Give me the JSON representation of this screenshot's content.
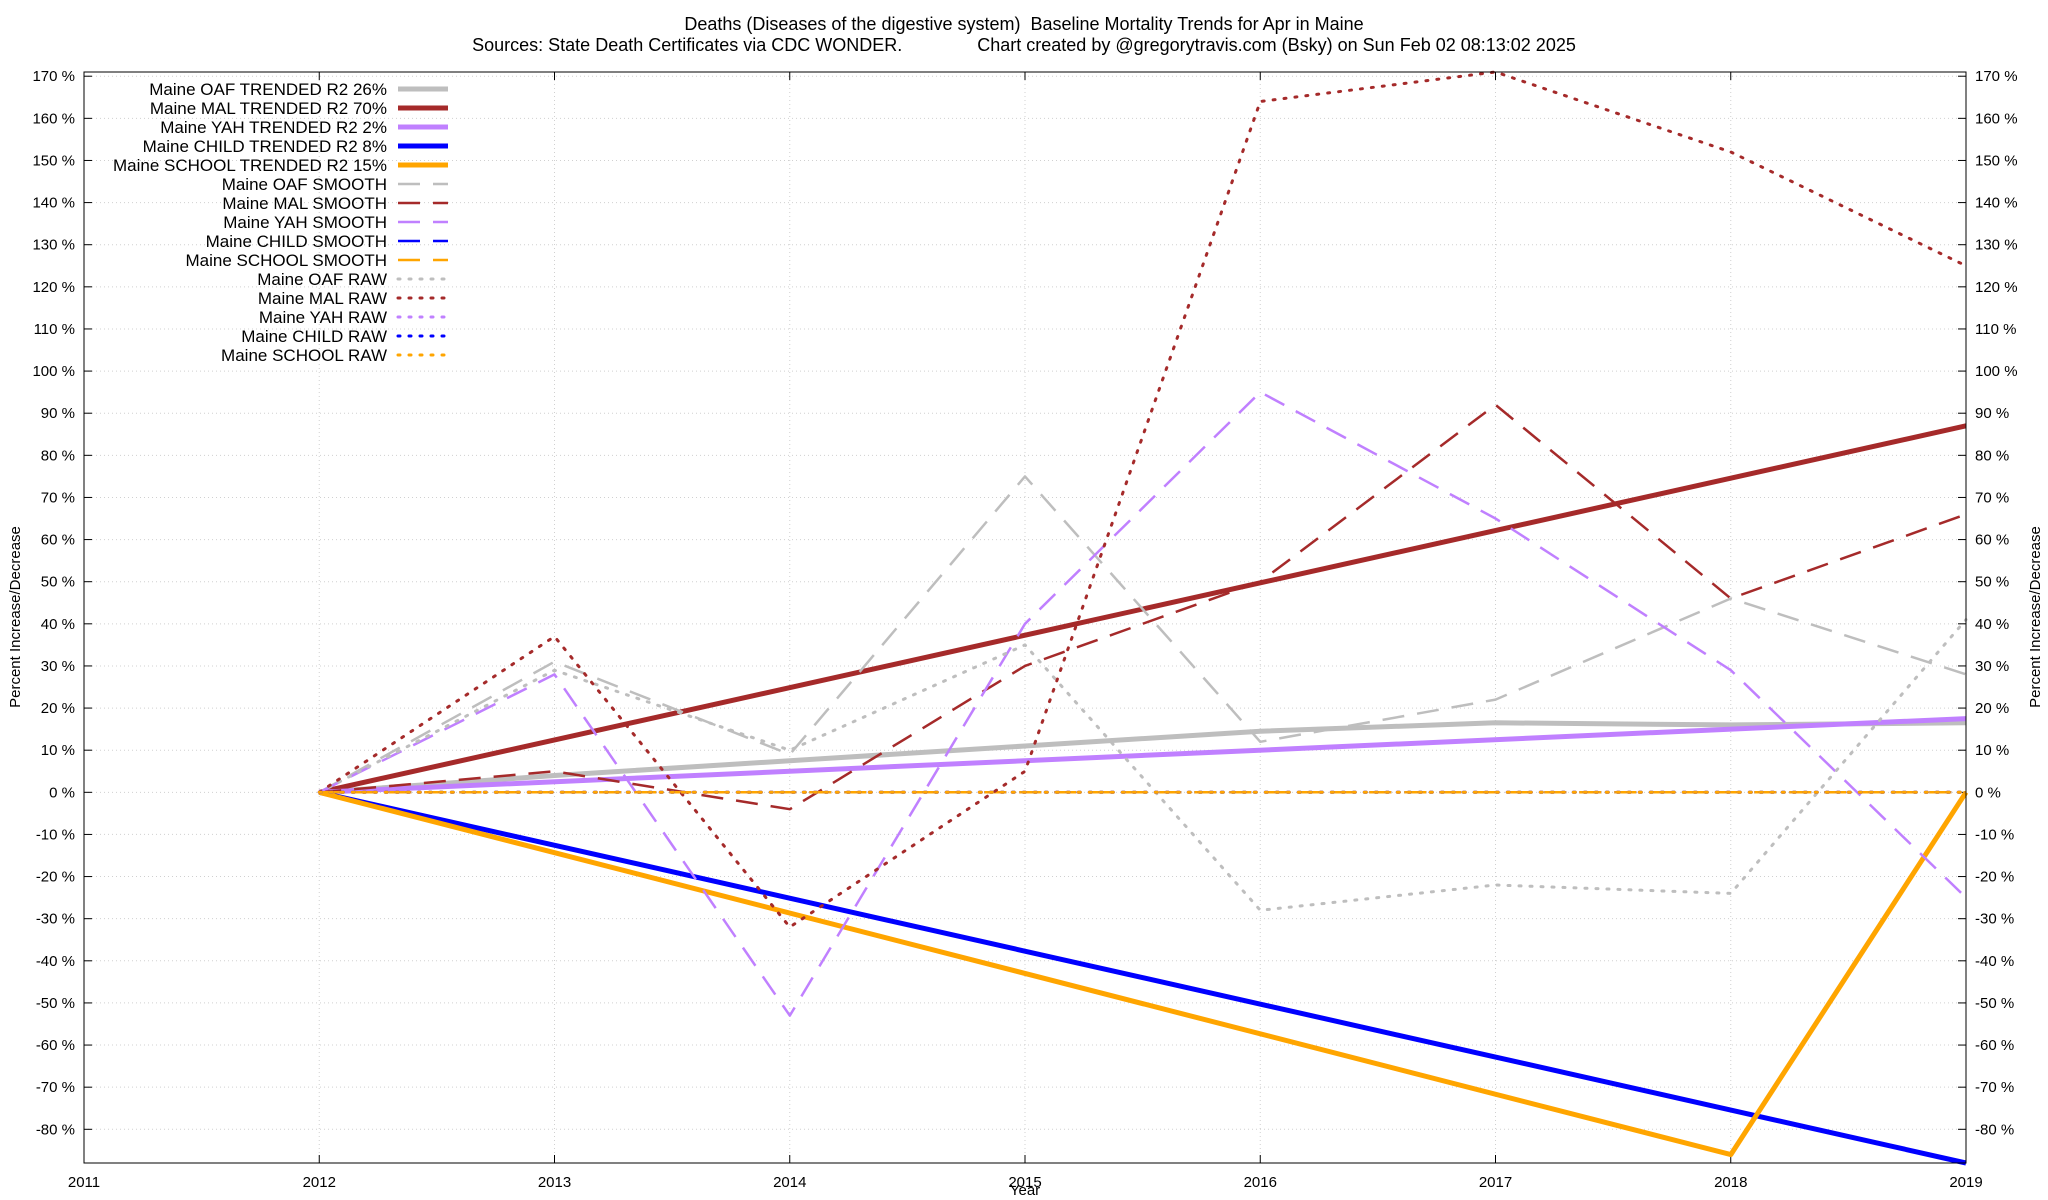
{
  "chart_data": {
    "type": "line",
    "title": "Deaths (Diseases of the digestive system)  Baseline Mortality Trends for Apr in Maine",
    "subtitle": "Sources: State Death Certificates via CDC WONDER.               Chart created by @gregorytravis.com (Bsky) on Sun Feb 02 08:13:02 2025",
    "xlabel": "Year",
    "ylabel": "Percent Increase/Decrease",
    "y2label": "Percent Increase/Decrease",
    "xlim": [
      2011,
      2019
    ],
    "ylim": [
      -88,
      171
    ],
    "x_ticks": [
      2011,
      2012,
      2013,
      2014,
      2015,
      2016,
      2017,
      2018,
      2019
    ],
    "y_ticks": [
      -80,
      -70,
      -60,
      -50,
      -40,
      -30,
      -20,
      -10,
      0,
      10,
      20,
      30,
      40,
      50,
      60,
      70,
      80,
      90,
      100,
      110,
      120,
      130,
      140,
      150,
      160,
      170
    ],
    "y_tick_suffix": " %",
    "grid": true,
    "legend_position": "top-left",
    "series": [
      {
        "name": "Maine OAF TRENDED R2  26%",
        "color": "#bebebe",
        "style": "trend",
        "x": [
          2012,
          2013,
          2014,
          2015,
          2016,
          2017,
          2018,
          2019
        ],
        "values": [
          0,
          4,
          7.5,
          11,
          14.5,
          16.5,
          16,
          16.5
        ]
      },
      {
        "name": "Maine MAL TRENDED R2  70%",
        "color": "#a52a2a",
        "style": "trend",
        "x": [
          2012,
          2019
        ],
        "values": [
          0,
          87
        ]
      },
      {
        "name": "Maine YAH TRENDED R2   2%",
        "color": "#c080ff",
        "style": "trend",
        "x": [
          2012,
          2019
        ],
        "values": [
          0,
          17.5
        ]
      },
      {
        "name": "Maine CHILD TRENDED R2   8%",
        "color": "#0000ff",
        "style": "trend",
        "x": [
          2012,
          2019
        ],
        "values": [
          0,
          -88
        ]
      },
      {
        "name": "Maine SCHOOL TRENDED R2  15%",
        "color": "#ffa500",
        "style": "trend",
        "x": [
          2012,
          2018,
          2019
        ],
        "values": [
          0,
          -86,
          0
        ]
      },
      {
        "name": "Maine OAF SMOOTH",
        "color": "#bebebe",
        "style": "smooth",
        "x": [
          2012,
          2013,
          2014,
          2015,
          2016,
          2017,
          2018,
          2019
        ],
        "values": [
          0,
          31,
          9,
          75,
          12,
          22,
          46,
          28
        ]
      },
      {
        "name": "Maine MAL SMOOTH",
        "color": "#a52a2a",
        "style": "smooth",
        "x": [
          2012,
          2013,
          2014,
          2015,
          2016,
          2017,
          2018,
          2019
        ],
        "values": [
          0,
          5,
          -4,
          30,
          50,
          92,
          46,
          66
        ]
      },
      {
        "name": "Maine YAH SMOOTH",
        "color": "#c080ff",
        "style": "smooth",
        "x": [
          2012,
          2013,
          2014,
          2015,
          2016,
          2017,
          2018,
          2019
        ],
        "values": [
          0,
          28,
          -53,
          40,
          95,
          65,
          29,
          -25
        ]
      },
      {
        "name": "Maine CHILD SMOOTH",
        "color": "#0000ff",
        "style": "smooth",
        "x": [
          2012,
          2019
        ],
        "values": [
          0,
          0
        ]
      },
      {
        "name": "Maine SCHOOL SMOOTH",
        "color": "#ffa500",
        "style": "smooth",
        "x": [
          2012,
          2019
        ],
        "values": [
          0,
          0
        ]
      },
      {
        "name": "Maine OAF RAW",
        "color": "#bebebe",
        "style": "raw",
        "x": [
          2012,
          2013,
          2014,
          2015,
          2016,
          2017,
          2018,
          2019
        ],
        "values": [
          0,
          29,
          10,
          35,
          -28,
          -22,
          -24,
          41
        ]
      },
      {
        "name": "Maine MAL RAW",
        "color": "#a52a2a",
        "style": "raw",
        "x": [
          2012,
          2013,
          2014,
          2015,
          2016,
          2017,
          2018,
          2019
        ],
        "values": [
          0,
          37,
          -32,
          5,
          164,
          171,
          152,
          125
        ]
      },
      {
        "name": "Maine YAH RAW",
        "color": "#c080ff",
        "style": "raw",
        "x": [
          2012,
          2019
        ],
        "values": [
          0,
          0
        ]
      },
      {
        "name": "Maine CHILD RAW",
        "color": "#0000ff",
        "style": "raw",
        "x": [
          2012,
          2019
        ],
        "values": [
          0,
          0
        ]
      },
      {
        "name": "Maine SCHOOL RAW",
        "color": "#ffa500",
        "style": "raw",
        "x": [
          2012,
          2019
        ],
        "values": [
          0,
          0
        ]
      }
    ]
  }
}
